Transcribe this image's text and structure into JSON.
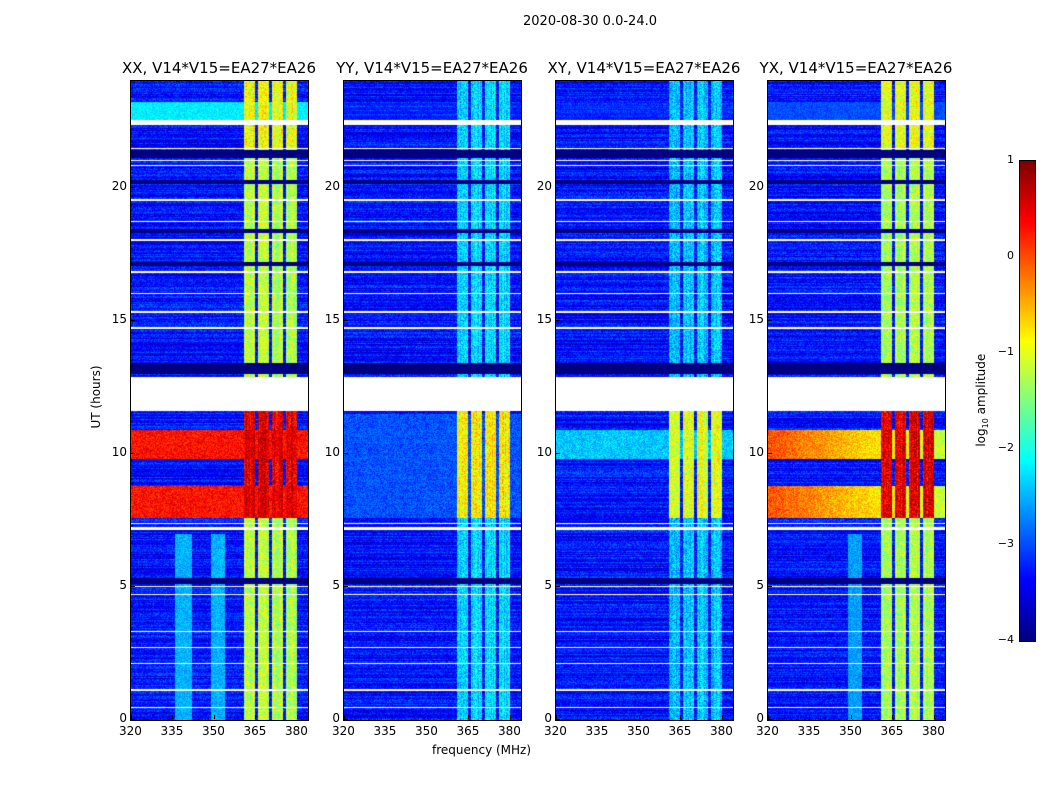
{
  "chart_data": {
    "type": "heatmap",
    "title": "2020-08-30 0.0-24.0",
    "xlabel": "frequency (MHz)",
    "ylabel": "UT (hours)",
    "xlim": [
      320,
      384
    ],
    "ylim": [
      0,
      24
    ],
    "xticks": [
      320,
      335,
      350,
      365,
      380
    ],
    "yticks": [
      0,
      5,
      10,
      15,
      20
    ],
    "colorbar": {
      "label": "log",
      "label_sub": "10",
      "label_tail": " amplitude",
      "range": [
        -4,
        1
      ],
      "ticks": [
        1,
        0,
        -1,
        -2,
        -3,
        -4
      ],
      "tick_labels": [
        "1",
        "0",
        "−1",
        "−2",
        "−3",
        "−4"
      ],
      "colormap": "jet"
    },
    "background_level": -3.3,
    "no_data_hours": [
      [
        11.6,
        12.9
      ],
      [
        22.35,
        22.55
      ],
      [
        0.45,
        0.5
      ],
      [
        1.1,
        1.15
      ],
      [
        2.1,
        2.15
      ],
      [
        2.7,
        2.75
      ],
      [
        3.3,
        3.35
      ],
      [
        4.7,
        4.75
      ],
      [
        5.0,
        5.05
      ],
      [
        7.15,
        7.25
      ],
      [
        7.35,
        7.4
      ],
      [
        14.7,
        14.75
      ],
      [
        15.3,
        15.35
      ],
      [
        16.0,
        16.05
      ],
      [
        16.8,
        16.85
      ],
      [
        18.0,
        18.05
      ],
      [
        18.7,
        18.75
      ],
      [
        19.5,
        19.55
      ],
      [
        20.8,
        20.85
      ],
      [
        21.0,
        21.05
      ],
      [
        21.45,
        21.5
      ]
    ],
    "low_hours": [
      [
        13.0,
        13.4
      ],
      [
        21.1,
        21.4
      ],
      [
        5.1,
        5.35
      ],
      [
        17.05,
        17.2
      ],
      [
        18.3,
        18.45
      ],
      [
        20.15,
        20.3
      ]
    ],
    "rfi_channels_mhz": [
      [
        361,
        365
      ],
      [
        366,
        370
      ],
      [
        371,
        375
      ],
      [
        376,
        380
      ]
    ],
    "panels": [
      {
        "title": "XX, V14*V15=EA27*EA26",
        "rfi_level": -1.2,
        "rfi_strong_level": 0.5,
        "strong_hours": [
          [
            7.6,
            8.8
          ],
          [
            9.8,
            10.9
          ]
        ],
        "strong_level": 0.3,
        "strong_broadband": true,
        "diffuse_mhz": [
          [
            336,
            342
          ],
          [
            349,
            354
          ]
        ],
        "diffuse_level": -2.5,
        "diffuse_hours": [
          0,
          7
        ],
        "band_2230_level": -2.2
      },
      {
        "title": "YY, V14*V15=EA27*EA26",
        "rfi_level": -2.3,
        "rfi_strong_level": -0.8,
        "strong_hours": [
          [
            7.6,
            11.5
          ]
        ],
        "strong_level": -3.0,
        "strong_broadband": false,
        "diffuse_mhz": [],
        "diffuse_level": -3.3,
        "diffuse_hours": [
          0,
          0
        ],
        "band_2230_level": -3.3
      },
      {
        "title": "XY, V14*V15=EA27*EA26",
        "rfi_level": -2.4,
        "rfi_strong_level": -1.0,
        "strong_hours": [
          [
            9.8,
            10.9
          ]
        ],
        "strong_level": -2.4,
        "strong_broadband": true,
        "diffuse_mhz": [],
        "diffuse_level": -3.3,
        "diffuse_hours": [
          0,
          0
        ],
        "band_2230_level": -3.3
      },
      {
        "title": "YX, V14*V15=EA27*EA26",
        "rfi_level": -1.3,
        "rfi_strong_level": 0.5,
        "strong_hours": [
          [
            7.6,
            8.8
          ],
          [
            9.8,
            10.9
          ]
        ],
        "strong_level": 0.0,
        "strong_broadband": true,
        "diffuse_mhz": [
          [
            349,
            354
          ]
        ],
        "diffuse_level": -2.6,
        "diffuse_hours": [
          0,
          7
        ],
        "band_2230_level": -3.0
      }
    ]
  }
}
